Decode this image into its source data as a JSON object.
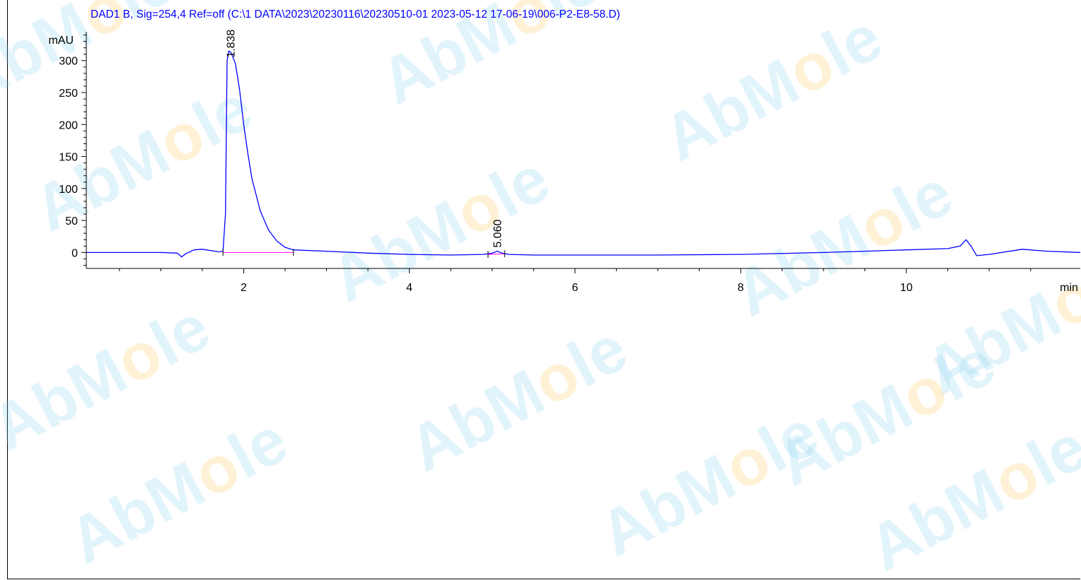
{
  "title": "DAD1 B, Sig=254,4 Ref=off (C:\\1 DATA\\2023\\20230116\\20230510-01 2023-05-12 17-06-19\\006-P2-E8-58.D)",
  "watermark": {
    "text": [
      "A",
      "b",
      "M",
      "o",
      "l",
      "e"
    ],
    "colors": {
      "main": "#7fd0ee",
      "o": "#ffc44a"
    }
  },
  "colors": {
    "title": "#0000ff",
    "trace": "#0000ff",
    "baseline": "#ff00ff",
    "axis": "#000000"
  },
  "chart_data": {
    "type": "line",
    "xlabel": "min",
    "ylabel": "mAU",
    "xlim": [
      0.1,
      12.1
    ],
    "ylim": [
      -25,
      345
    ],
    "x_ticks": [
      2,
      4,
      6,
      8,
      10
    ],
    "x_tick_labels": [
      "2",
      "4",
      "6",
      "8",
      "10"
    ],
    "y_ticks": [
      0,
      50,
      100,
      150,
      200,
      250,
      300
    ],
    "y_tick_labels": [
      "0",
      "50",
      "100",
      "150",
      "200",
      "250",
      "300"
    ],
    "grid": false,
    "peaks": [
      {
        "rt": 1.838,
        "label": "1.838",
        "height": 300
      },
      {
        "rt": 5.06,
        "label": "5.060",
        "height": 3
      }
    ],
    "series": [
      {
        "x": [
          0.1,
          0.5,
          1.0,
          1.2,
          1.25,
          1.3,
          1.4,
          1.5,
          1.6,
          1.7,
          1.75,
          1.78,
          1.8,
          1.82,
          1.85,
          1.9,
          1.95,
          2.0,
          2.05,
          2.1,
          2.2,
          2.3,
          2.4,
          2.5,
          2.6,
          3.0,
          3.5,
          4.0,
          4.5,
          4.9,
          5.0,
          5.06,
          5.12,
          5.2,
          5.5,
          6.0,
          7.0,
          8.0,
          9.0,
          9.5,
          10.0,
          10.5,
          10.65,
          10.72,
          10.78,
          10.85,
          11.0,
          11.4,
          11.7,
          12.1
        ],
        "y": [
          0,
          0,
          0,
          -1,
          -7,
          -2,
          4,
          5,
          3,
          1,
          2,
          60,
          300,
          315,
          312,
          295,
          255,
          200,
          155,
          115,
          65,
          35,
          18,
          8,
          4,
          2,
          -1,
          -3,
          -4,
          -3,
          -1,
          2,
          -1,
          -3,
          -4,
          -4,
          -4,
          -3,
          0,
          2,
          4,
          6,
          10,
          20,
          10,
          -5,
          -3,
          5,
          2,
          0
        ]
      },
      {
        "name": "baseline",
        "x": [
          1.75,
          2.6
        ],
        "y": [
          0,
          0
        ]
      },
      {
        "name": "baseline",
        "x": [
          4.95,
          5.15
        ],
        "y": [
          -3,
          -2
        ]
      }
    ]
  }
}
